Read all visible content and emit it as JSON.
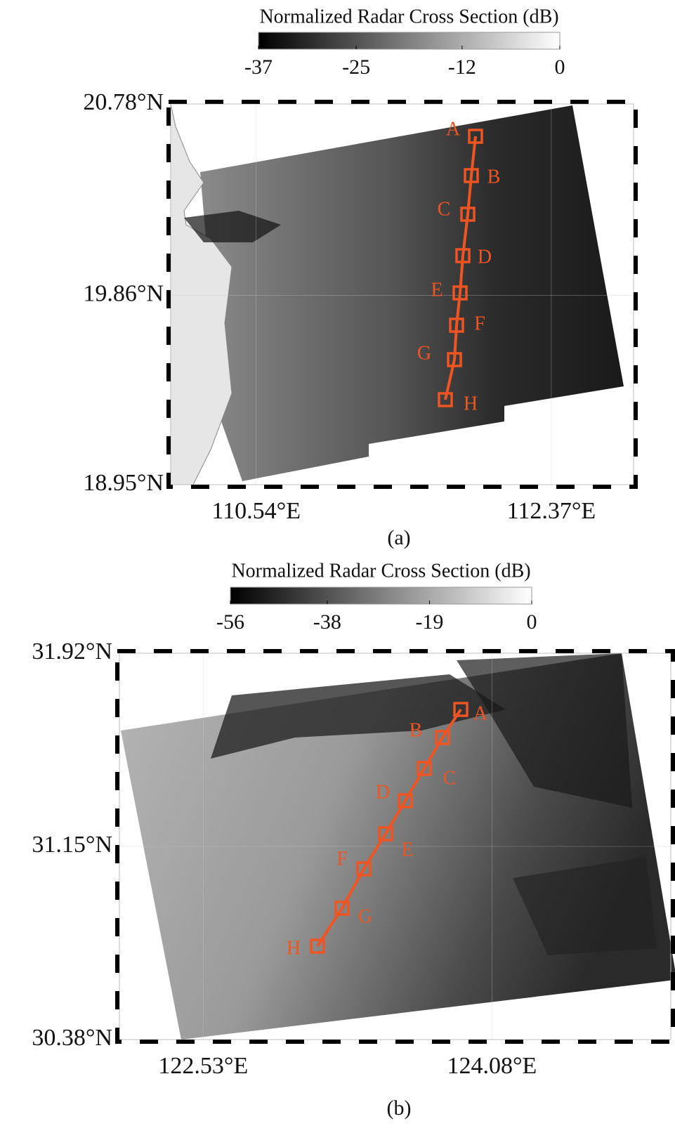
{
  "panels": [
    {
      "colorbar": {
        "title": "Normalized Radar Cross Section (dB)",
        "clim": [
          -37,
          0
        ],
        "ticks": [
          -37,
          -25,
          -12,
          0
        ]
      },
      "latlim": [
        18.95,
        20.78
      ],
      "lat_ticks": [
        {
          "value": 20.78,
          "label": "20.78°N"
        },
        {
          "value": 19.86,
          "label": "19.86°N"
        },
        {
          "value": 18.95,
          "label": "18.95°N"
        }
      ],
      "lonlim": [
        110.01,
        112.88
      ],
      "lon_ticks": [
        {
          "value": 110.54,
          "label": "110.54°E"
        },
        {
          "value": 112.37,
          "label": "112.37°E"
        }
      ],
      "points": [
        "A",
        "B",
        "C",
        "D",
        "E",
        "F",
        "G",
        "H"
      ],
      "caption": "(a)"
    },
    {
      "colorbar": {
        "title": "Normalized Radar Cross Section (dB)",
        "clim": [
          -56,
          0
        ],
        "ticks": [
          -56,
          -38,
          -19,
          0
        ]
      },
      "latlim": [
        30.38,
        31.92
      ],
      "lat_ticks": [
        {
          "value": 31.92,
          "label": "31.92°N"
        },
        {
          "value": 31.15,
          "label": "31.15°N"
        },
        {
          "value": 30.38,
          "label": "30.38°N"
        }
      ],
      "lonlim": [
        122.08,
        125.04
      ],
      "lon_ticks": [
        {
          "value": 122.53,
          "label": "122.53°E"
        },
        {
          "value": 124.08,
          "label": "124.08°E"
        }
      ],
      "points": [
        "A",
        "B",
        "C",
        "D",
        "E",
        "F",
        "G",
        "H"
      ],
      "caption": "(b)"
    }
  ]
}
